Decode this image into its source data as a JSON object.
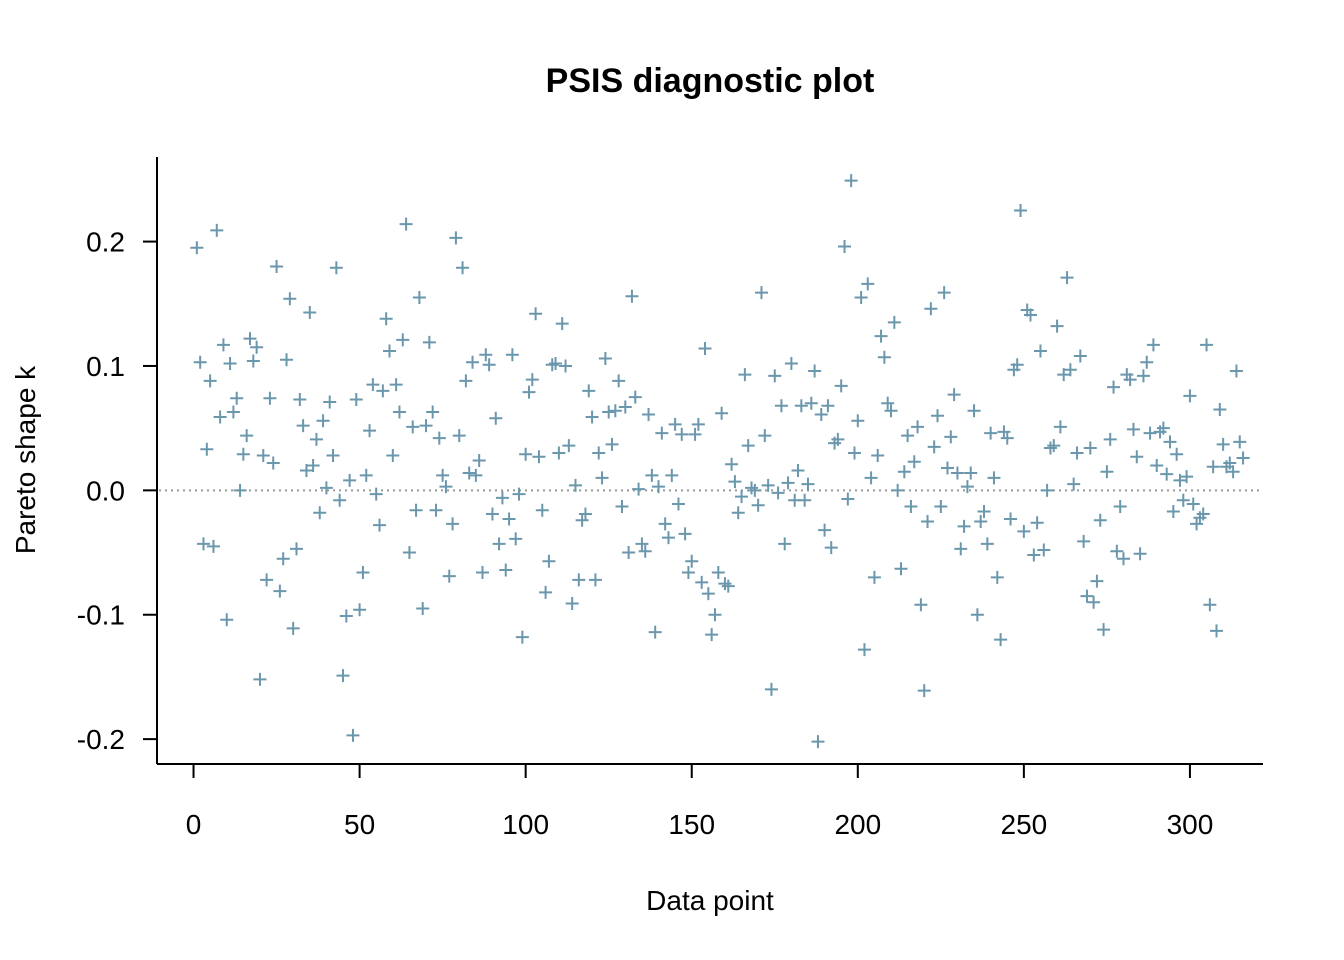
{
  "chart_data": {
    "type": "scatter",
    "title": "PSIS diagnostic plot",
    "xlabel": "Data point",
    "ylabel": "Pareto shape k",
    "xlim": [
      -11,
      322
    ],
    "ylim": [
      -0.22,
      0.268
    ],
    "x_ticks": [
      0,
      50,
      100,
      150,
      200,
      250,
      300
    ],
    "x_tick_labels": [
      "0",
      "50",
      "100",
      "150",
      "200",
      "250",
      "300"
    ],
    "y_ticks": [
      -0.2,
      -0.1,
      0.0,
      0.1,
      0.2
    ],
    "y_tick_labels": [
      "-0.2",
      "-0.1",
      "0.0",
      "0.1",
      "0.2"
    ],
    "reference_line_y": 0.0,
    "marker": "plus",
    "color": "#6b97ad",
    "grid": false,
    "y": [
      0.195,
      0.103,
      -0.043,
      0.033,
      0.088,
      -0.045,
      0.209,
      0.059,
      0.117,
      -0.104,
      0.102,
      0.063,
      0.074,
      0.0,
      0.029,
      0.044,
      0.122,
      0.104,
      0.115,
      -0.152,
      0.028,
      -0.072,
      0.074,
      0.022,
      0.18,
      -0.081,
      -0.055,
      0.105,
      0.154,
      -0.111,
      -0.047,
      0.073,
      0.052,
      0.016,
      0.143,
      0.02,
      0.041,
      -0.018,
      0.056,
      0.002,
      0.071,
      0.028,
      0.179,
      -0.008,
      -0.149,
      -0.101,
      0.008,
      -0.197,
      0.073,
      -0.096,
      -0.066,
      0.012,
      0.048,
      0.085,
      -0.003,
      -0.028,
      0.08,
      0.138,
      0.112,
      0.028,
      0.085,
      0.063,
      0.121,
      0.214,
      -0.05,
      0.051,
      -0.016,
      0.155,
      -0.095,
      0.052,
      0.119,
      0.063,
      -0.016,
      0.042,
      0.012,
      0.003,
      -0.069,
      -0.027,
      0.203,
      0.044,
      0.179,
      0.088,
      0.014,
      0.103,
      0.012,
      0.024,
      -0.066,
      0.109,
      0.101,
      -0.019,
      0.058,
      -0.043,
      -0.006,
      -0.064,
      -0.023,
      0.109,
      -0.039,
      -0.003,
      -0.118,
      0.029,
      0.079,
      0.089,
      0.142,
      0.027,
      -0.016,
      -0.082,
      -0.057,
      0.101,
      0.102,
      0.03,
      0.134,
      0.1,
      0.036,
      -0.091,
      0.004,
      -0.072,
      -0.024,
      -0.019,
      0.08,
      0.059,
      -0.072,
      0.03,
      0.01,
      0.106,
      0.063,
      0.037,
      0.064,
      0.088,
      -0.013,
      0.067,
      -0.05,
      0.156,
      0.075,
      0.001,
      -0.043,
      -0.049,
      0.061,
      0.012,
      -0.114,
      0.003,
      0.046,
      -0.027,
      -0.038,
      0.012,
      0.053,
      -0.011,
      0.045,
      -0.035,
      -0.066,
      -0.057,
      0.045,
      0.053,
      -0.074,
      0.114,
      -0.083,
      -0.116,
      -0.1,
      -0.066,
      0.062,
      -0.075,
      -0.077,
      0.021,
      0.007,
      -0.018,
      -0.005,
      0.093,
      0.036,
      0.002,
      0.0,
      -0.012,
      0.159,
      0.044,
      0.004,
      -0.16,
      0.092,
      -0.002,
      0.068,
      -0.043,
      0.006,
      0.102,
      -0.008,
      0.016,
      0.068,
      -0.008,
      0.005,
      0.07,
      0.096,
      -0.202,
      0.061,
      -0.032,
      0.068,
      -0.046,
      0.038,
      0.041,
      0.084,
      0.196,
      -0.007,
      0.249,
      0.03,
      0.056,
      0.155,
      -0.128,
      0.166,
      0.01,
      -0.07,
      0.028,
      0.124,
      0.107,
      0.07,
      0.064,
      0.135,
      0.0,
      -0.063,
      0.015,
      0.044,
      -0.013,
      0.023,
      0.051,
      -0.092,
      -0.161,
      -0.025,
      0.146,
      0.035,
      0.06,
      -0.013,
      0.159,
      0.018,
      0.043,
      0.077,
      0.014,
      -0.047,
      -0.029,
      0.003,
      0.014,
      0.064,
      -0.1,
      -0.025,
      -0.017,
      -0.043,
      0.046,
      0.01,
      -0.07,
      -0.12,
      0.047,
      0.042,
      -0.023,
      0.097,
      0.101,
      0.225,
      -0.033,
      0.145,
      0.141,
      -0.052,
      -0.026,
      0.112,
      -0.048,
      0.0,
      0.034,
      0.036,
      0.132,
      0.051,
      0.093,
      0.171,
      0.097,
      0.005,
      0.03,
      0.108,
      -0.041,
      -0.085,
      0.034,
      -0.09,
      -0.073,
      -0.024,
      -0.112,
      0.015,
      0.041,
      0.083,
      -0.049,
      -0.013,
      -0.055,
      0.093,
      0.089,
      0.049,
      0.027,
      -0.051,
      0.092,
      0.103,
      0.046,
      0.117,
      0.02,
      0.047,
      0.05,
      0.013,
      0.039,
      -0.017,
      0.029,
      0.008,
      -0.008,
      0.011,
      0.076,
      -0.011,
      -0.027,
      -0.022,
      -0.019,
      0.117,
      -0.092,
      0.019,
      -0.113,
      0.065,
      0.037,
      0.019,
      0.022,
      0.015,
      0.096,
      0.039,
      0.026
    ]
  }
}
